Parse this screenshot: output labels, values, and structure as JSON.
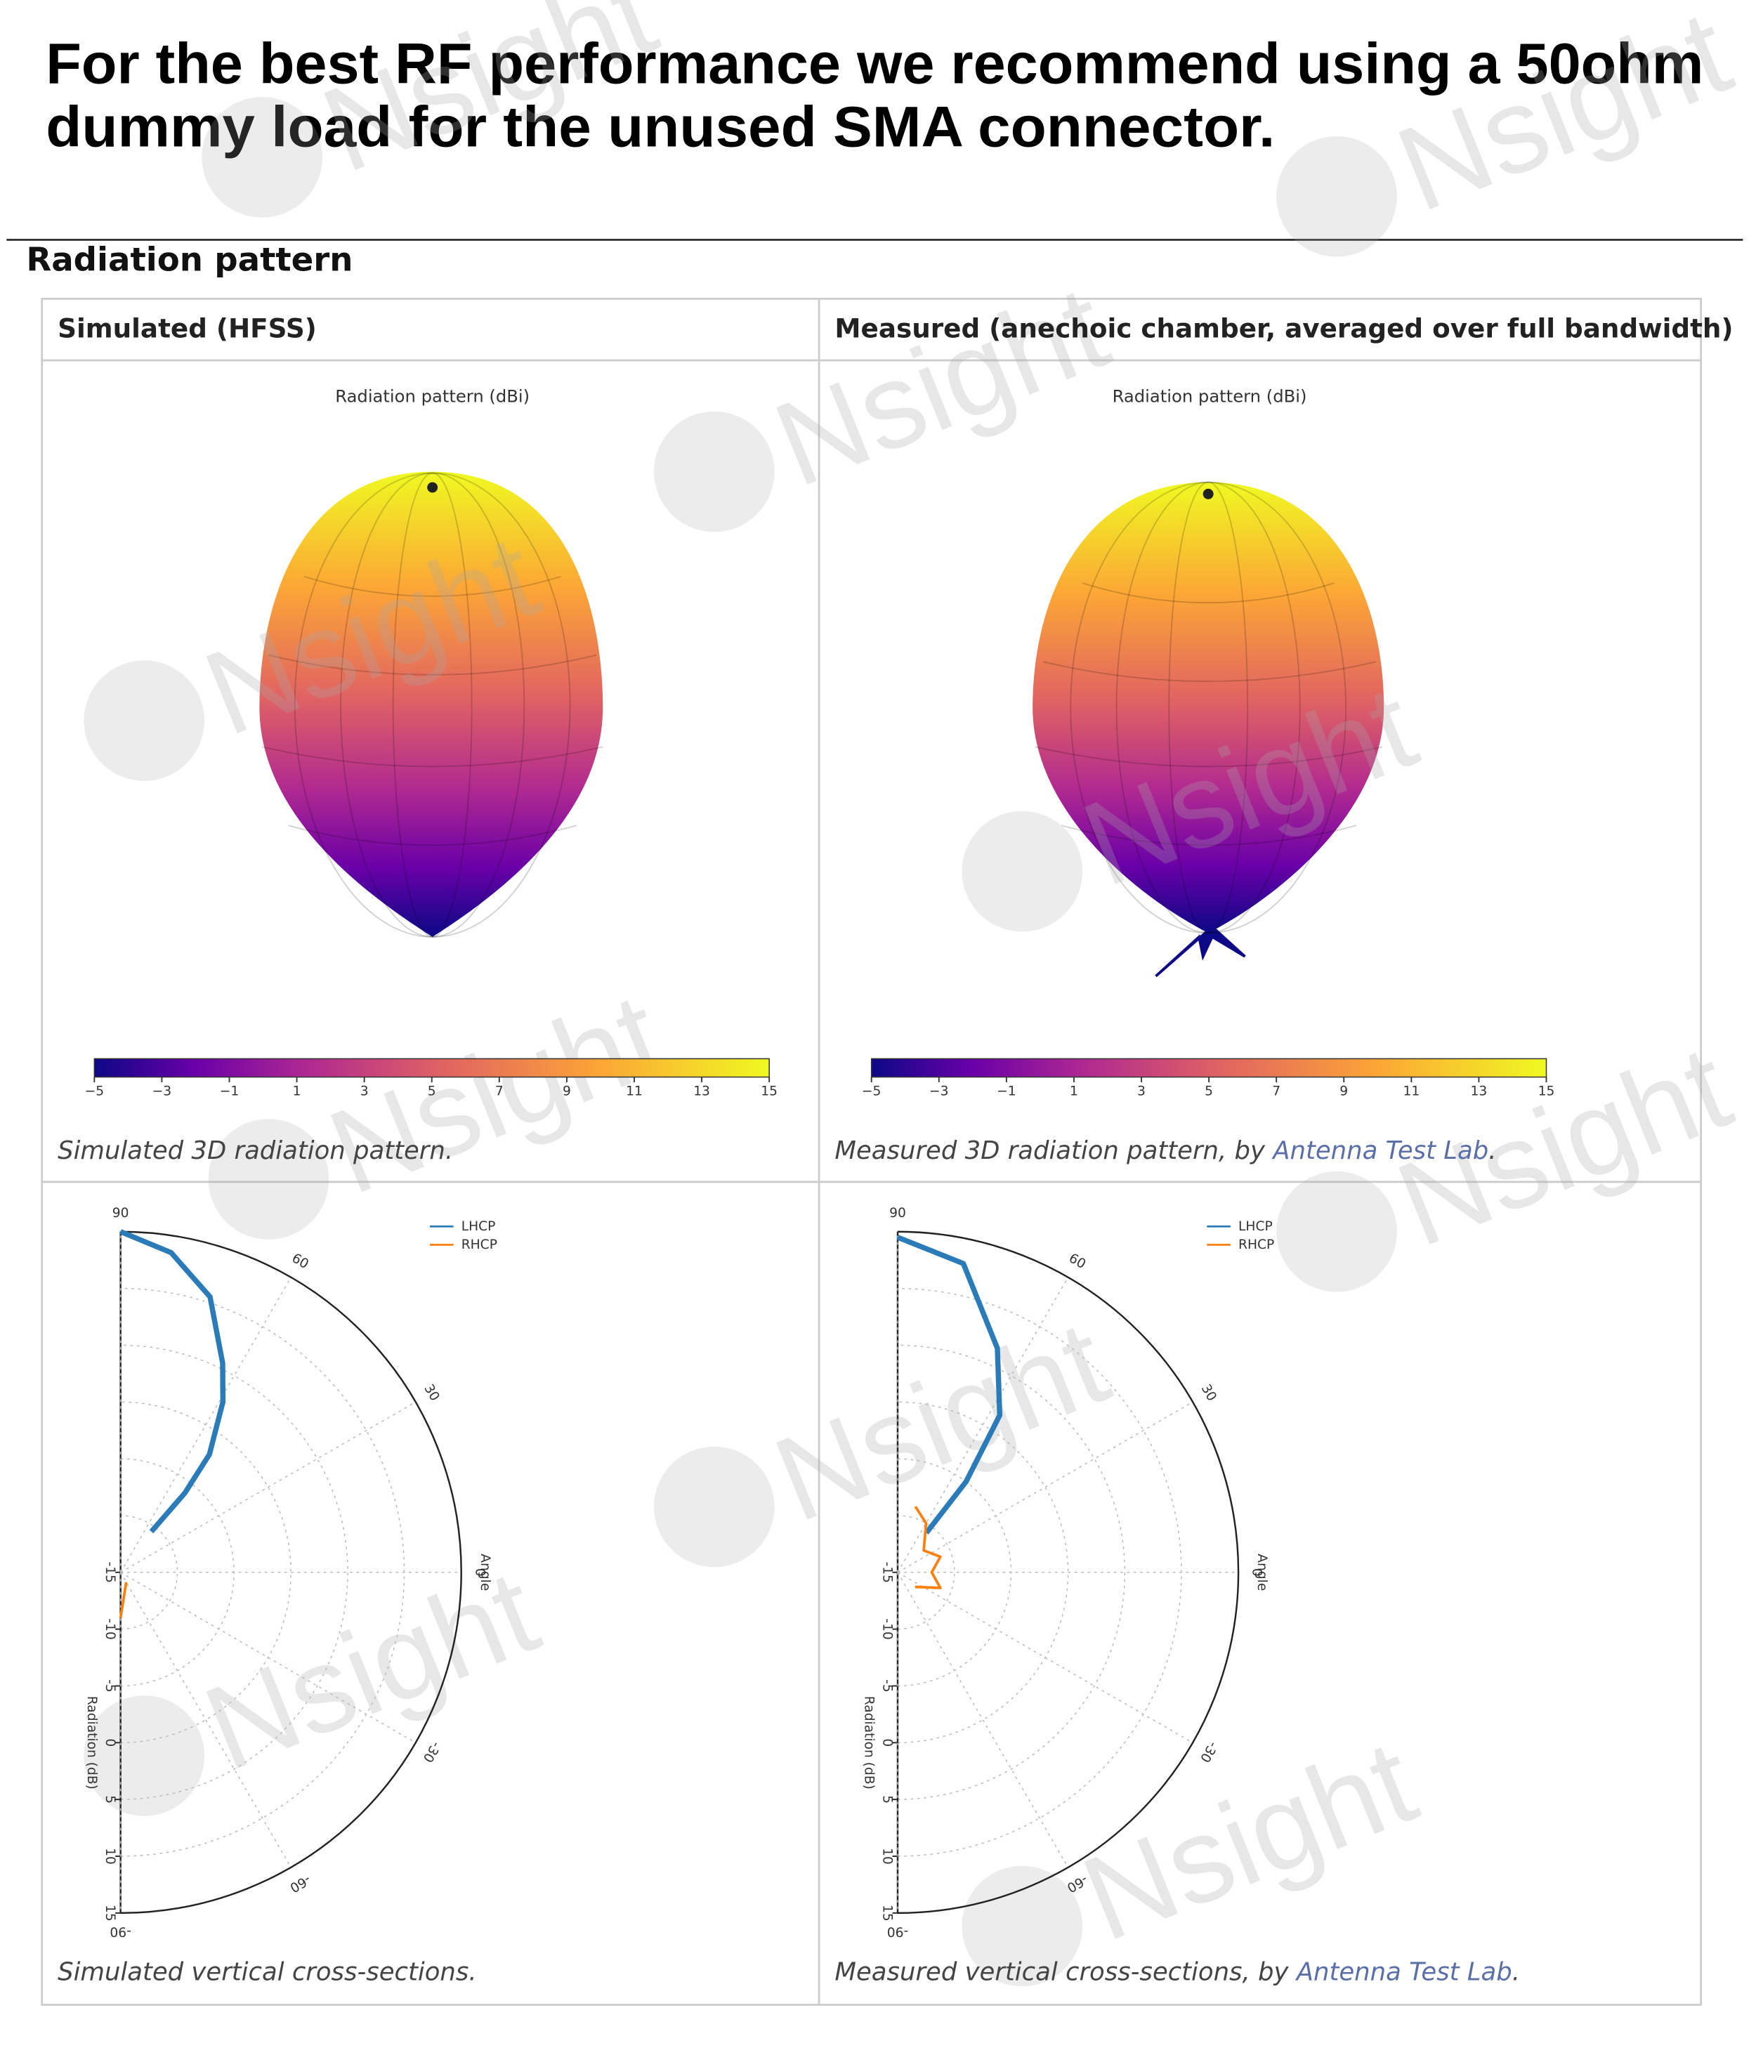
{
  "header": {
    "line1": "For the best RF performance we recommend using a 50ohm",
    "line2": "dummy load for the unused SMA connector."
  },
  "section_title": "Radiation pattern",
  "watermark": "Nsight",
  "panels": [
    {
      "header": "Simulated (HFSS)",
      "plot_title": "Radiation pattern (dBi)",
      "colorbar": {
        "clim": [
          -5,
          15
        ],
        "ticks": [
          {
            "value": -5,
            "label": "−5"
          },
          {
            "value": -3,
            "label": "−3"
          },
          {
            "value": -1,
            "label": "−1"
          },
          1,
          3,
          5,
          7,
          9,
          11,
          13,
          15
        ]
      },
      "caption_3d": {
        "text": "Simulated 3D radiation pattern."
      },
      "polar": {
        "rlim": [
          -15,
          15
        ],
        "r_ticks": [
          -15,
          -10,
          -5,
          0,
          5,
          10,
          15
        ],
        "angle_ticks": [
          90,
          60,
          30,
          0,
          -30,
          -60,
          -90
        ],
        "angle_label": "Angle",
        "r_label": "Radiation (dB)",
        "series": [
          {
            "name": "LHCP",
            "color": "#2b7bb9",
            "theta": [
              90,
              81,
              72,
              64,
              59,
              53,
              51,
              53
            ],
            "r": [
              15,
              13.5,
              10.5,
              5.5,
              2.5,
              -2,
              -6,
              -10.5
            ]
          },
          {
            "name": "RHCP",
            "color": "#ff7f0e",
            "theta": [
              -60,
              -90
            ],
            "r": [
              -14,
              -11
            ]
          }
        ]
      },
      "caption_cross": {
        "text": "Simulated vertical cross-sections."
      }
    },
    {
      "header": "Measured (anechoic chamber, averaged over full bandwidth)",
      "plot_title": "Radiation pattern (dBi)",
      "colorbar": {
        "clim": [
          -5,
          15
        ],
        "ticks": [
          {
            "value": -5,
            "label": "−5"
          },
          {
            "value": -3,
            "label": "−3"
          },
          {
            "value": -1,
            "label": "−1"
          },
          1,
          3,
          5,
          7,
          9,
          11,
          13,
          15
        ]
      },
      "caption_3d": {
        "text": "Measured 3D radiation pattern, by ",
        "link": "Antenna Test Lab",
        "end": "."
      },
      "polar": {
        "rlim": [
          -15,
          15
        ],
        "r_ticks": [
          -15,
          -10,
          -5,
          0,
          5,
          10,
          15
        ],
        "angle_ticks": [
          90,
          60,
          30,
          0,
          -30,
          -60,
          -90
        ],
        "angle_label": "Angle",
        "r_label": "Radiation (dB)",
        "series": [
          {
            "name": "LHCP",
            "color": "#2b7bb9",
            "theta": [
              90,
              78,
              66,
              57,
              53,
              54
            ],
            "r": [
              14.5,
              12.8,
              6.6,
              1.5,
              -5,
              -10.7
            ]
          },
          {
            "name": "RHCP",
            "color": "#ff7f0e",
            "theta": [
              75,
              60,
              40,
              20,
              0,
              -20,
              -40
            ],
            "r": [
              -9,
              -10,
              -12,
              -11,
              -12,
              -11,
              -13
            ]
          }
        ]
      },
      "caption_cross": {
        "text": "Measured vertical cross-sections, by ",
        "link": "Antenna Test Lab",
        "end": "."
      }
    }
  ]
}
